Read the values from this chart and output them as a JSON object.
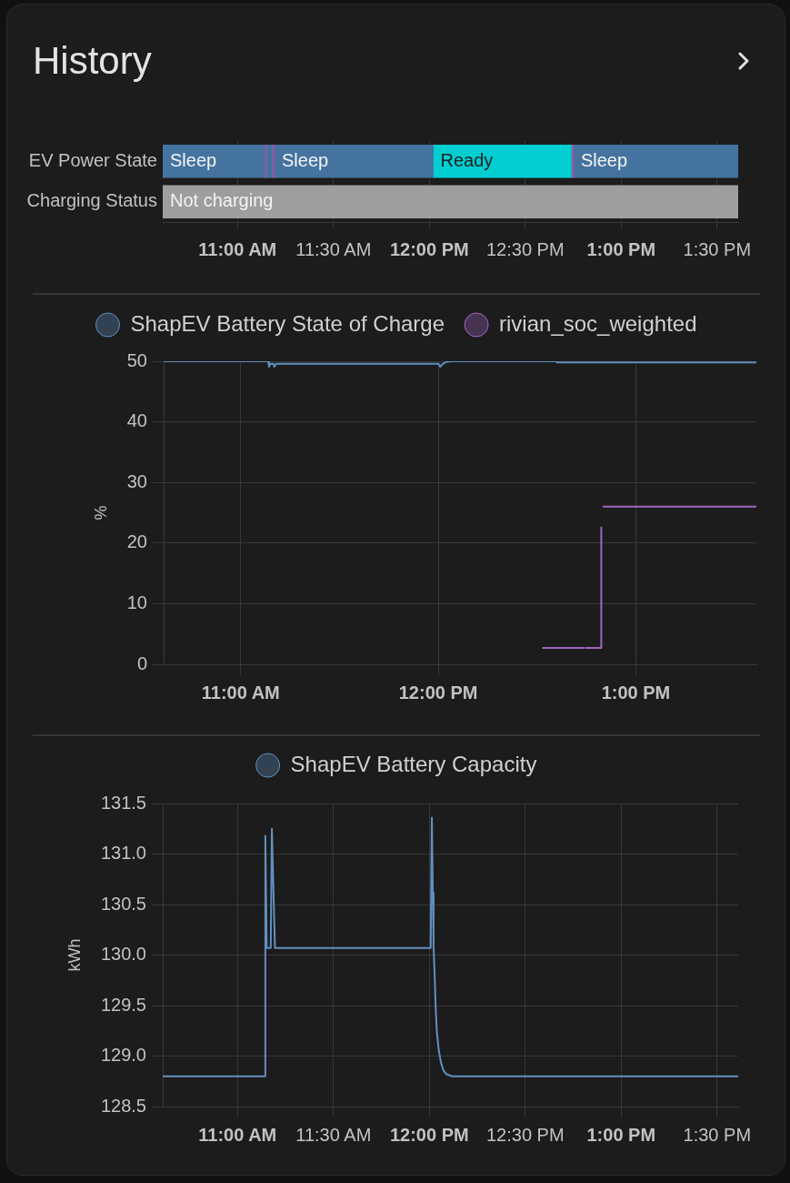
{
  "chart_data": [
    {
      "type": "bar",
      "title": "History",
      "orientation": "horizontal",
      "categories": [
        "EV Power State",
        "Charging Status"
      ],
      "series": [
        {
          "color": "#45739f",
          "base": [
            10.61,
            null
          ],
          "values": [
            0.531,
            null
          ],
          "value_labels": [
            "Sleep",
            null
          ]
        },
        {
          "color": "#8e5ba8",
          "base": [
            11.141,
            null
          ],
          "values": [
            0.01,
            null
          ]
        },
        {
          "color": "#45739f",
          "base": [
            11.151,
            null
          ],
          "values": [
            0.028,
            null
          ]
        },
        {
          "color": "#8e5ba8",
          "base": [
            11.179,
            null
          ],
          "values": [
            0.014,
            null
          ]
        },
        {
          "color": "#45739f",
          "base": [
            11.193,
            null
          ],
          "values": [
            0.827,
            null
          ],
          "value_labels": [
            "Sleep",
            null
          ]
        },
        {
          "color": "#00ced1",
          "base": [
            12.02,
            null
          ],
          "values": [
            0.72,
            null
          ],
          "value_labels": [
            "Ready",
            null
          ]
        },
        {
          "color": "#8e5ba8",
          "base": [
            12.74,
            null
          ],
          "values": [
            0.012,
            null
          ]
        },
        {
          "color": "#45739f",
          "base": [
            12.752,
            null
          ],
          "values": [
            0.858,
            null
          ],
          "value_labels": [
            "Sleep",
            null
          ]
        },
        {
          "color": "#9e9e9e",
          "base": [
            null,
            10.61
          ],
          "values": [
            null,
            3.0
          ],
          "value_labels": [
            null,
            "Not charging"
          ]
        }
      ],
      "xlim": [
        10.61,
        13.61
      ],
      "xticks": [
        {
          "value": 11,
          "label": "11:00 AM"
        },
        {
          "value": 11.5,
          "label": "11:30 AM"
        },
        {
          "value": 12,
          "label": "12:00 PM"
        },
        {
          "value": 12.5,
          "label": "12:30 PM"
        },
        {
          "value": 13,
          "label": "1:00 PM"
        },
        {
          "value": 13.5,
          "label": "1:30 PM"
        }
      ],
      "grid": "x"
    },
    {
      "type": "line",
      "ylabel": "%",
      "legend": "top",
      "marker": "none",
      "grid": true,
      "xlim": [
        10.61,
        13.61
      ],
      "xticks": [
        {
          "value": 11,
          "label": "11:00 AM"
        },
        {
          "value": 12,
          "label": "12:00 PM"
        },
        {
          "value": 13,
          "label": "1:00 PM"
        }
      ],
      "ylim": [
        0,
        50
      ],
      "yticks": [
        0,
        10,
        20,
        30,
        40,
        50
      ],
      "series": [
        {
          "name": "ShapEV Battery State of Charge",
          "color": "#6190c0",
          "x": [
            10.61,
            11.14,
            11.143,
            11.15,
            11.165,
            11.17,
            11.18,
            12.0,
            12.01,
            12.02,
            12.04,
            12.07,
            12.6,
            12.6,
            13.61
          ],
          "values": [
            50,
            50,
            49.1,
            49.6,
            49.6,
            49.1,
            49.6,
            49.6,
            49.1,
            49.5,
            49.9,
            50,
            50,
            49.8,
            49.8
          ]
        },
        {
          "name": "rivian_soc_weighted",
          "color": "#a066c0",
          "x": [
            12.53,
            12.737,
            12.742,
            12.747,
            12.825,
            12.825,
            12.83,
            12.836,
            13.61
          ],
          "values": [
            2.7,
            2.7,
            null,
            2.7,
            2.7,
            22.6,
            null,
            26,
            26
          ]
        }
      ]
    },
    {
      "type": "line",
      "ylabel": "kWh",
      "legend": "top",
      "marker": "none",
      "grid": true,
      "xlim": [
        10.61,
        13.61
      ],
      "xticks": [
        {
          "value": 11,
          "label": "11:00 AM"
        },
        {
          "value": 11.5,
          "label": "11:30 AM"
        },
        {
          "value": 12,
          "label": "12:00 PM"
        },
        {
          "value": 12.5,
          "label": "12:30 PM"
        },
        {
          "value": 13,
          "label": "1:00 PM"
        },
        {
          "value": 13.5,
          "label": "1:30 PM"
        }
      ],
      "ylim": [
        128.5,
        131.5
      ],
      "yticks": [
        128.5,
        {
          "value": 129,
          "label": "129.0"
        },
        129.5,
        {
          "value": 130,
          "label": "130.0"
        },
        130.5,
        {
          "value": 131,
          "label": "131.0"
        },
        131.5
      ],
      "series": [
        {
          "name": "ShapEV Battery Capacity",
          "color": "#6190c0",
          "x": [
            10.61,
            11.145,
            11.145,
            11.152,
            11.173,
            11.179,
            11.195,
            12.007,
            12.013,
            12.018,
            12.022,
            12.028,
            12.033,
            12.039,
            12.049,
            12.06,
            12.073,
            12.089,
            12.12,
            13.61
          ],
          "values": [
            128.8,
            128.8,
            131.18,
            130.07,
            130.07,
            131.25,
            130.07,
            130.07,
            131.36,
            130.62,
            130.08,
            129.78,
            129.48,
            129.24,
            129.06,
            128.94,
            128.86,
            128.82,
            128.8,
            128.8
          ]
        }
      ]
    }
  ]
}
